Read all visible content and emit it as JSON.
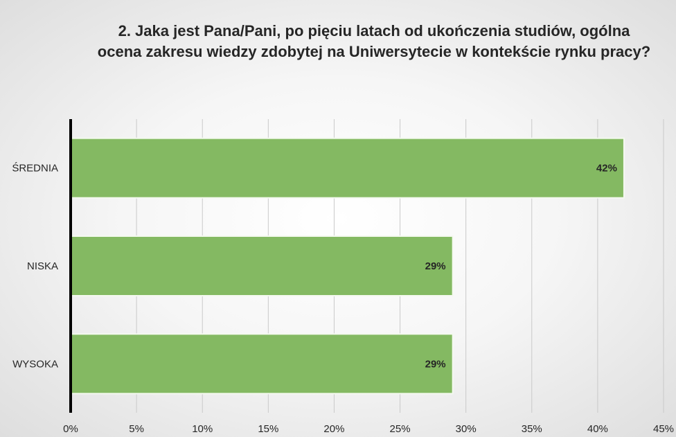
{
  "chart_data": {
    "type": "bar",
    "orientation": "horizontal",
    "title": "2. Jaka jest Pana/Pani, po pięciu latach od ukończenia studiów, ogólna ocena zakresu wiedzy zdobytej na Uniwersytecie w kontekście rynku pracy?",
    "categories": [
      "ŚREDNIA",
      "NISKA",
      "WYSOKA"
    ],
    "values": [
      42,
      29,
      29
    ],
    "data_labels": [
      "42%",
      "29%",
      "29%"
    ],
    "xlim": [
      0,
      45
    ],
    "x_ticks": [
      0,
      5,
      10,
      15,
      20,
      25,
      30,
      35,
      40,
      45
    ],
    "x_tick_labels": [
      "0%",
      "5%",
      "10%",
      "15%",
      "20%",
      "25%",
      "30%",
      "35%",
      "40%",
      "45%"
    ],
    "grid": true,
    "legend": "none",
    "colors": {
      "bar_fill": "#84b962",
      "bar_stroke": "#f4f9ef",
      "gridline": "#c9c9c9",
      "axis_line": "#000000"
    }
  }
}
